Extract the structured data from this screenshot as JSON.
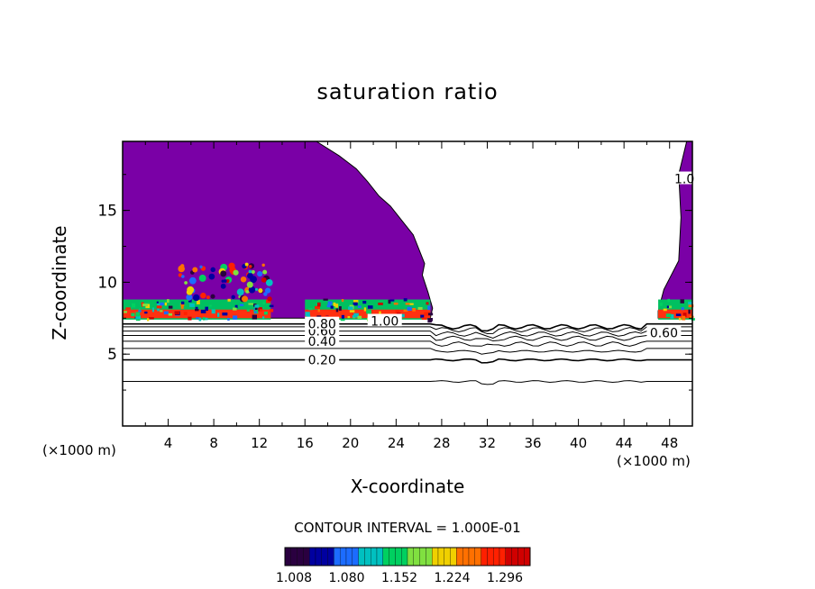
{
  "chart_data": {
    "type": "contour",
    "title": "saturation ratio",
    "xlabel": "X-coordinate",
    "ylabel": "Z-coordinate",
    "x_unit_left": "(×1000 m)",
    "x_unit_right": "(×1000 m)",
    "xlim": [
      0,
      50
    ],
    "ylim": [
      0,
      19.8
    ],
    "xticks": [
      4,
      8,
      12,
      16,
      20,
      24,
      28,
      32,
      36,
      40,
      44,
      48
    ],
    "yticks": [
      5,
      10,
      15
    ],
    "contour_interval_label": "CONTOUR INTERVAL = 1.000E-01",
    "contour_labels": [
      {
        "text": "0.20",
        "x": 17.5,
        "y": 4.6
      },
      {
        "text": "0.40",
        "x": 17.5,
        "y": 5.9
      },
      {
        "text": "0.60",
        "x": 17.5,
        "y": 6.6
      },
      {
        "text": "0.80",
        "x": 17.5,
        "y": 7.1
      },
      {
        "text": "1.00",
        "x": 23.0,
        "y": 7.3
      },
      {
        "text": "0.60",
        "x": 47.5,
        "y": 6.5
      },
      {
        "text": "1.0",
        "x": 49.3,
        "y": 17.2
      }
    ],
    "contour_levels_y": [
      3.1,
      4.6,
      5.4,
      5.9,
      6.3,
      6.6,
      6.9,
      7.1
    ],
    "supersaturated_region": {
      "fill_color": "#7a00a6",
      "left_lobe_top_boundary": [
        [
          0,
          19.8
        ],
        [
          17,
          19.8
        ],
        [
          19,
          18.8
        ],
        [
          20.5,
          17.9
        ],
        [
          21.5,
          17.0
        ],
        [
          22.5,
          16.0
        ],
        [
          23.5,
          15.3
        ],
        [
          24.5,
          14.3
        ],
        [
          25.5,
          13.3
        ],
        [
          26.0,
          12.3
        ],
        [
          26.5,
          11.3
        ],
        [
          26.3,
          10.5
        ],
        [
          26.8,
          9.3
        ],
        [
          27.2,
          8.2
        ],
        [
          27.0,
          7.5
        ]
      ],
      "right_lobe_boundary": [
        [
          49.5,
          19.8
        ],
        [
          48.8,
          17.5
        ],
        [
          49.0,
          14.5
        ],
        [
          48.8,
          11.5
        ],
        [
          47.5,
          9.5
        ],
        [
          47.0,
          8.0
        ],
        [
          47.0,
          7.5
        ],
        [
          50,
          7.5
        ]
      ],
      "colorbar": {
        "ticks": [
          "1.008",
          "1.080",
          "1.152",
          "1.224",
          "1.296"
        ],
        "colors": [
          "#2a0040",
          "#0000a0",
          "#1c6cff",
          "#00c0c0",
          "#00d060",
          "#80e040",
          "#f0d000",
          "#ff7000",
          "#ff2000",
          "#d00000"
        ]
      }
    }
  }
}
